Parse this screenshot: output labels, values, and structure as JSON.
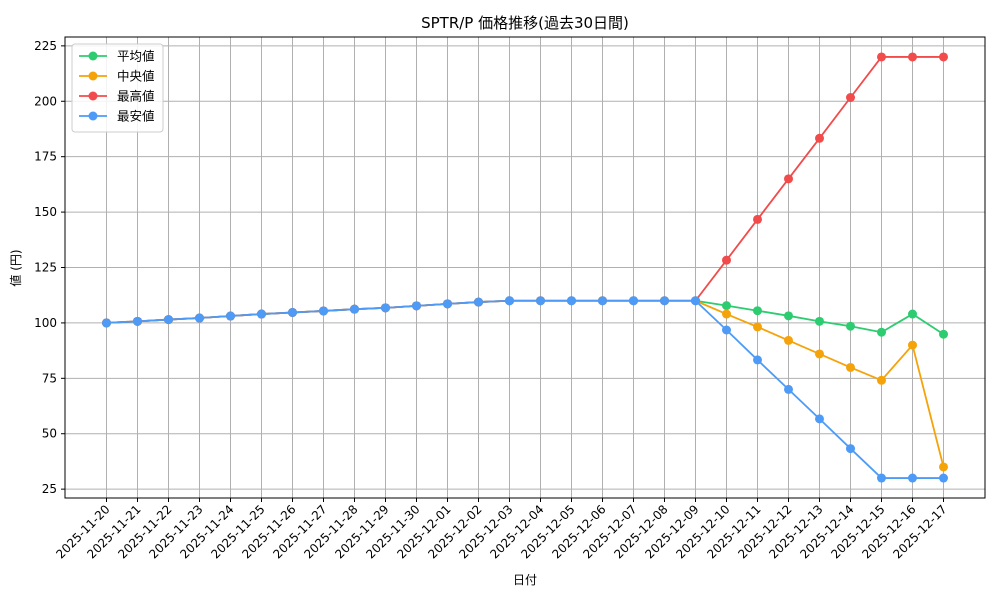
{
  "chart_data": {
    "type": "line",
    "title": "SPTR/P 価格推移(過去30日間)",
    "xlabel": "日付",
    "ylabel": "値 (円)",
    "ylim": [
      21,
      229
    ],
    "yticks": [
      25,
      50,
      75,
      100,
      125,
      150,
      175,
      200,
      225
    ],
    "grid": true,
    "legend_position": "upper left",
    "categories": [
      "2025-11-20",
      "2025-11-21",
      "2025-11-22",
      "2025-11-23",
      "2025-11-24",
      "2025-11-25",
      "2025-11-26",
      "2025-11-27",
      "2025-11-28",
      "2025-11-29",
      "2025-11-30",
      "2025-12-01",
      "2025-12-02",
      "2025-12-03",
      "2025-12-04",
      "2025-12-05",
      "2025-12-06",
      "2025-12-07",
      "2025-12-08",
      "2025-12-09",
      "2025-12-10",
      "2025-12-11",
      "2025-12-12",
      "2025-12-13",
      "2025-12-14",
      "2025-12-15",
      "2025-12-16",
      "2025-12-17"
    ],
    "series": [
      {
        "name": "平均値",
        "color": "#2ecc71",
        "values": [
          100,
          100.7,
          101.5,
          102.2,
          103.1,
          104.0,
          104.7,
          105.4,
          106.2,
          106.8,
          107.7,
          108.6,
          109.4,
          110,
          110,
          110,
          110,
          110,
          110,
          110,
          107.8,
          105.5,
          103.2,
          100.7,
          98.5,
          95.8,
          104.0,
          94.9
        ]
      },
      {
        "name": "中央値",
        "color": "#f5a30a",
        "values": [
          100,
          100.7,
          101.5,
          102.2,
          103.1,
          104.0,
          104.7,
          105.4,
          106.2,
          106.8,
          107.7,
          108.6,
          109.4,
          110,
          110,
          110,
          110,
          110,
          110,
          110,
          104.0,
          98.2,
          92.1,
          86.0,
          79.9,
          74.1,
          90.0,
          35.0
        ]
      },
      {
        "name": "最高値",
        "color": "#f24b4b",
        "values": [
          100,
          100.7,
          101.5,
          102.2,
          103.1,
          104.0,
          104.7,
          105.4,
          106.2,
          106.8,
          107.7,
          108.6,
          109.4,
          110,
          110,
          110,
          110,
          110,
          110,
          110,
          128.3,
          146.7,
          165.0,
          183.3,
          201.7,
          220,
          220,
          220
        ]
      },
      {
        "name": "最安値",
        "color": "#4d9bf7",
        "values": [
          100,
          100.7,
          101.5,
          102.2,
          103.1,
          104.0,
          104.7,
          105.4,
          106.2,
          106.8,
          107.7,
          108.6,
          109.4,
          110,
          110,
          110,
          110,
          110,
          110,
          110,
          96.8,
          83.3,
          70.0,
          56.7,
          43.3,
          30,
          30,
          30
        ]
      }
    ]
  },
  "labels": {
    "title": "SPTR/P 価格推移(過去30日間)",
    "xlabel": "日付",
    "ylabel": "値 (円)"
  },
  "colors": {
    "grid": "#b0b0b0",
    "axis": "#000000",
    "legend_border": "#cccccc"
  }
}
